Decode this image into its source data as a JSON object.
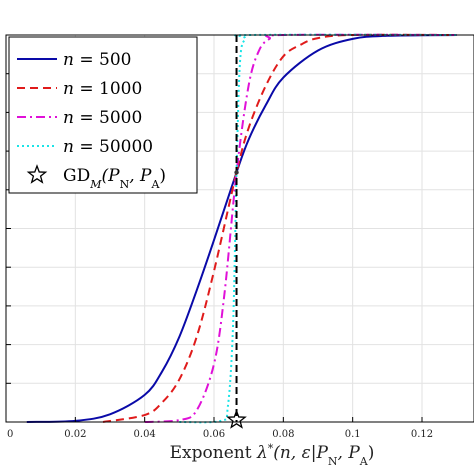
{
  "chart_data": {
    "type": "line",
    "title": "",
    "xlabel": "Exponent λ*(n, ε|P_N, P_A)",
    "xlabel_parts": {
      "word": "Exponent ",
      "lambda": "λ",
      "star": "*",
      "args": "(n, ε|P",
      "sub_n": "N",
      "comma": ", P",
      "sub_a": "A",
      "close": ")"
    },
    "ylabel": "",
    "xlim": [
      0,
      0.135
    ],
    "ylim": [
      0,
      1
    ],
    "grid": true,
    "legend_position": "top-left",
    "x_ticks": [
      {
        "value": 0,
        "label": "0"
      },
      {
        "value": 0.02,
        "label": "0.02"
      },
      {
        "value": 0.04,
        "label": "0.04"
      },
      {
        "value": 0.06,
        "label": "0.06"
      },
      {
        "value": 0.08,
        "label": "0.08"
      },
      {
        "value": 0.1,
        "label": "0.1"
      },
      {
        "value": 0.12,
        "label": "0.12"
      }
    ],
    "y_grid": [
      0.1,
      0.2,
      0.3,
      0.4,
      0.5,
      0.6,
      0.7,
      0.8,
      0.9,
      1.0
    ],
    "threshold_x": 0.0665,
    "crossing_point": {
      "x": 0.0665,
      "y": 0.645
    },
    "marker_point": {
      "x": 0.0665,
      "y": 0
    },
    "series": [
      {
        "name_prefix": "n",
        "name_value": "500",
        "color": "#0a0aa8",
        "dash": "solid",
        "x": [
          0.006,
          0.02,
          0.03,
          0.04,
          0.045,
          0.05,
          0.055,
          0.06,
          0.0665,
          0.07,
          0.075,
          0.08,
          0.09,
          0.1,
          0.11,
          0.13
        ],
        "y": [
          0.0,
          0.003,
          0.02,
          0.07,
          0.13,
          0.22,
          0.34,
          0.47,
          0.645,
          0.73,
          0.82,
          0.89,
          0.96,
          0.99,
          0.998,
          1.0
        ]
      },
      {
        "name_prefix": "n",
        "name_value": "1000",
        "color": "#e01b1b",
        "dash": "dashed",
        "x": [
          0.028,
          0.04,
          0.045,
          0.05,
          0.055,
          0.06,
          0.0665,
          0.07,
          0.075,
          0.08,
          0.085,
          0.09,
          0.1,
          0.13
        ],
        "y": [
          0.0,
          0.018,
          0.05,
          0.11,
          0.22,
          0.39,
          0.645,
          0.76,
          0.87,
          0.945,
          0.975,
          0.992,
          1.0,
          1.0
        ]
      },
      {
        "name_prefix": "n",
        "name_value": "5000",
        "color": "#e010d8",
        "dash": "dashdot",
        "x": [
          0.04,
          0.05,
          0.055,
          0.06,
          0.063,
          0.0665,
          0.07,
          0.073,
          0.076,
          0.08,
          0.13
        ],
        "y": [
          0.0,
          0.005,
          0.03,
          0.15,
          0.33,
          0.645,
          0.87,
          0.96,
          0.99,
          1.0,
          1.0
        ]
      },
      {
        "name_prefix": "n",
        "name_value": "50000",
        "color": "#1ae4e8",
        "dash": "dotted",
        "x": [
          0.05,
          0.062,
          0.064,
          0.0655,
          0.0665,
          0.0675,
          0.069,
          0.071,
          0.13
        ],
        "y": [
          0.0,
          0.003,
          0.04,
          0.25,
          0.645,
          0.93,
          0.99,
          1.0,
          1.0
        ]
      }
    ],
    "legend_marker_entry": {
      "label_gd": "GD",
      "label_sub_m": "M",
      "label_args": "(P",
      "label_sub_n": "N",
      "label_comma": ", P",
      "label_sub_a": "A",
      "label_close": ")"
    },
    "equals_sign": " = "
  }
}
